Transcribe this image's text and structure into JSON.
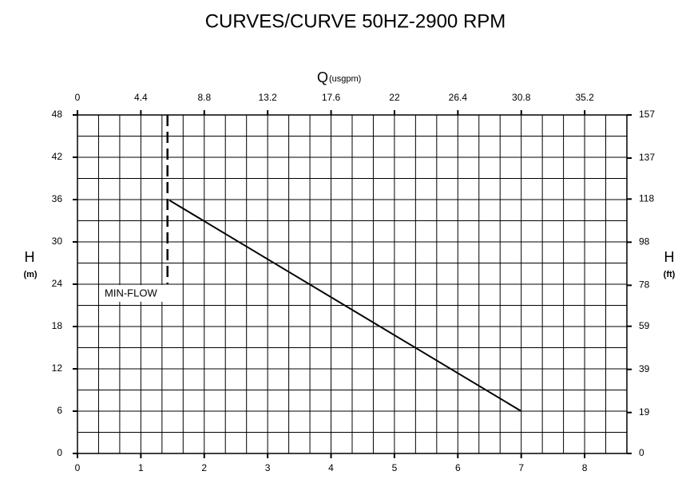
{
  "chart_data": {
    "type": "line",
    "title": "CURVES/CURVE 50HZ-2900 RPM",
    "x_label": "Q",
    "x2_label": "(usgpm)",
    "y_label": "H",
    "y_unit": "(m)",
    "y2_label": "H",
    "y2_unit": "(ft)",
    "xlim": [
      0,
      8.667
    ],
    "xticks": [
      0,
      1,
      2,
      3,
      4,
      5,
      6,
      7,
      8
    ],
    "x2lim": [
      0,
      38.13
    ],
    "x2ticks": [
      0,
      4.4,
      8.8,
      13.2,
      17.6,
      22,
      26.4,
      30.8,
      35.2
    ],
    "ylim": [
      0,
      48
    ],
    "yticks": [
      0,
      6,
      12,
      18,
      24,
      30,
      36,
      42,
      48
    ],
    "y2lim": [
      0,
      157
    ],
    "y2ticks": [
      0,
      19,
      39,
      59,
      78,
      98,
      118,
      137,
      157
    ],
    "grid": true,
    "series": [
      {
        "color": "#000000",
        "x": [
          1.45,
          7
        ],
        "values": [
          35.9,
          6
        ]
      }
    ],
    "min_flow": {
      "label": "MIN-FLOW",
      "x": 1.42,
      "y": [
        24,
        48
      ]
    }
  }
}
